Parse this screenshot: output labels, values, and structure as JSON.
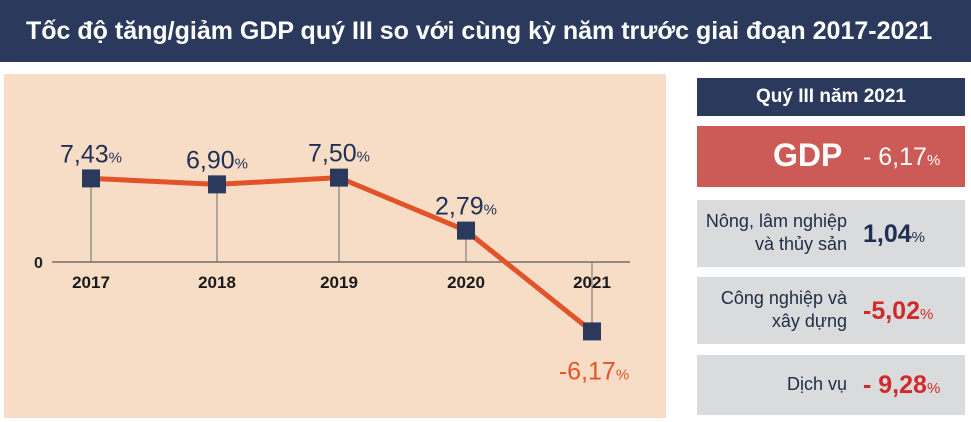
{
  "title": "Tốc độ tăng/giảm GDP quý III so với cùng kỳ năm trước giai đoạn 2017-2021",
  "chart_data": {
    "type": "line",
    "title": "Tốc độ tăng/giảm GDP quý III so với cùng kỳ năm trước giai đoạn 2017-2021",
    "categories": [
      "2017",
      "2018",
      "2019",
      "2020",
      "2021"
    ],
    "series": [
      {
        "values": [
          7.43,
          6.9,
          7.5,
          2.79,
          -6.17
        ]
      }
    ],
    "data_labels": [
      "7,43",
      "6,90",
      "7,50",
      "2,79",
      "-6,17"
    ],
    "unit": "%",
    "zero_label": "0",
    "grid": false,
    "line_color": "#e2532a",
    "marker_color": "#2b3a5c",
    "label_color": "#1f2f55",
    "negative_label_color": "#e2532a"
  },
  "side": {
    "header": "Quý III năm 2021",
    "gdp": {
      "label": "GDP",
      "value": "- 6,17",
      "unit": "%"
    },
    "sectors": [
      {
        "label": "Nông, lâm nghiệp\nvà thủy sản",
        "value": "1,04",
        "unit": "%",
        "negative": false
      },
      {
        "label": "Công nghiệp và\nxây dựng",
        "value": "-5,02",
        "unit": "%",
        "negative": true
      },
      {
        "label": "Dịch vụ",
        "value": "- 9,28",
        "unit": "%",
        "negative": true
      }
    ]
  },
  "colors": {
    "navy": "#2b3a5c",
    "red_box": "#cc5a56",
    "panel_bg": "#f8ddc6",
    "grey_box": "#d9dbdc"
  }
}
